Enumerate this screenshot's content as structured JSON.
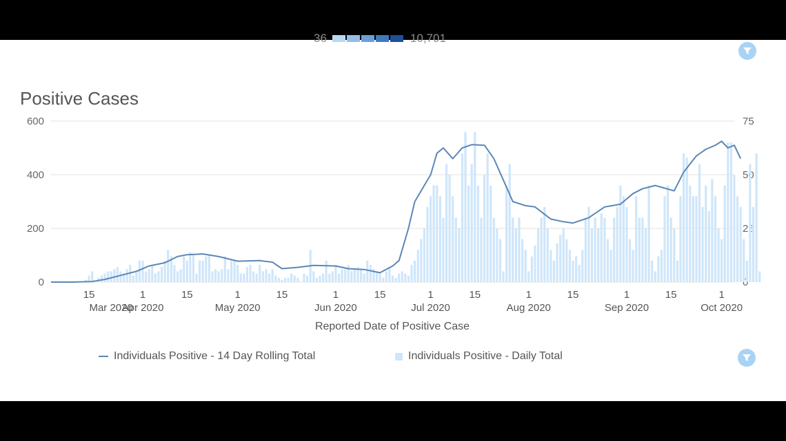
{
  "top_legend": {
    "min_label": "36",
    "max_label": "10,701",
    "swatches": [
      "#b9d7f0",
      "#93bee6",
      "#6a9fd6",
      "#3f79bd",
      "#1f4f96"
    ]
  },
  "colors": {
    "line": "#5b87b5",
    "bar": "#cfe6fa",
    "grid": "#e3e3e3",
    "filter_button": "#a9d3f5"
  },
  "icons": {
    "filter": "filter-icon"
  },
  "chart_data": {
    "type": "bar+line",
    "title": "Positive Cases",
    "xlabel": "Reported Date of Positive Case",
    "ylabel_left": "",
    "ylabel_right": "",
    "x_range": [
      "2020-03-03",
      "2020-10-05"
    ],
    "ylim_left": [
      0,
      600
    ],
    "ylim_right": [
      0,
      75
    ],
    "yticks_left": [
      "0",
      "200",
      "400",
      "600"
    ],
    "yticks_right": [
      "0",
      "25",
      "50",
      "75"
    ],
    "xticks": [
      {
        "date": "2020-03-15",
        "top": "15",
        "bottom": ""
      },
      {
        "date": "2020-03-22",
        "top": "",
        "bottom": "Mar 2020"
      },
      {
        "date": "2020-04-01",
        "top": "1",
        "bottom": "Apr 2020"
      },
      {
        "date": "2020-04-15",
        "top": "15",
        "bottom": ""
      },
      {
        "date": "2020-05-01",
        "top": "1",
        "bottom": "May 2020"
      },
      {
        "date": "2020-05-15",
        "top": "15",
        "bottom": ""
      },
      {
        "date": "2020-06-01",
        "top": "1",
        "bottom": "Jun 2020"
      },
      {
        "date": "2020-06-15",
        "top": "15",
        "bottom": ""
      },
      {
        "date": "2020-07-01",
        "top": "1",
        "bottom": "Jul 2020"
      },
      {
        "date": "2020-07-15",
        "top": "15",
        "bottom": ""
      },
      {
        "date": "2020-08-01",
        "top": "1",
        "bottom": "Aug 2020"
      },
      {
        "date": "2020-08-15",
        "top": "15",
        "bottom": ""
      },
      {
        "date": "2020-09-01",
        "top": "1",
        "bottom": "Sep 2020"
      },
      {
        "date": "2020-09-15",
        "top": "15",
        "bottom": ""
      },
      {
        "date": "2020-10-01",
        "top": "1",
        "bottom": "Oct 2020"
      }
    ],
    "grid": true,
    "legend_position": "bottom",
    "series": [
      {
        "name": "Individuals Positive - 14 Day Rolling Total",
        "type": "line",
        "axis": "left",
        "points": [
          [
            "2020-03-03",
            0
          ],
          [
            "2020-03-10",
            0
          ],
          [
            "2020-03-16",
            2
          ],
          [
            "2020-03-20",
            10
          ],
          [
            "2020-03-25",
            25
          ],
          [
            "2020-03-30",
            40
          ],
          [
            "2020-04-03",
            60
          ],
          [
            "2020-04-08",
            72
          ],
          [
            "2020-04-12",
            95
          ],
          [
            "2020-04-15",
            102
          ],
          [
            "2020-04-20",
            105
          ],
          [
            "2020-04-25",
            95
          ],
          [
            "2020-05-01",
            78
          ],
          [
            "2020-05-08",
            80
          ],
          [
            "2020-05-12",
            74
          ],
          [
            "2020-05-15",
            50
          ],
          [
            "2020-05-20",
            55
          ],
          [
            "2020-05-25",
            62
          ],
          [
            "2020-06-01",
            60
          ],
          [
            "2020-06-05",
            50
          ],
          [
            "2020-06-10",
            47
          ],
          [
            "2020-06-15",
            35
          ],
          [
            "2020-06-19",
            60
          ],
          [
            "2020-06-21",
            80
          ],
          [
            "2020-06-24",
            200
          ],
          [
            "2020-06-26",
            300
          ],
          [
            "2020-06-28",
            340
          ],
          [
            "2020-07-01",
            400
          ],
          [
            "2020-07-03",
            480
          ],
          [
            "2020-07-05",
            500
          ],
          [
            "2020-07-08",
            460
          ],
          [
            "2020-07-11",
            500
          ],
          [
            "2020-07-14",
            512
          ],
          [
            "2020-07-18",
            510
          ],
          [
            "2020-07-21",
            460
          ],
          [
            "2020-07-24",
            380
          ],
          [
            "2020-07-27",
            300
          ],
          [
            "2020-07-31",
            285
          ],
          [
            "2020-08-03",
            280
          ],
          [
            "2020-08-08",
            235
          ],
          [
            "2020-08-12",
            225
          ],
          [
            "2020-08-15",
            220
          ],
          [
            "2020-08-20",
            240
          ],
          [
            "2020-08-25",
            280
          ],
          [
            "2020-08-30",
            290
          ],
          [
            "2020-09-03",
            330
          ],
          [
            "2020-09-06",
            348
          ],
          [
            "2020-09-10",
            360
          ],
          [
            "2020-09-13",
            350
          ],
          [
            "2020-09-16",
            340
          ],
          [
            "2020-09-19",
            410
          ],
          [
            "2020-09-23",
            470
          ],
          [
            "2020-09-26",
            495
          ],
          [
            "2020-09-29",
            510
          ],
          [
            "2020-10-01",
            525
          ],
          [
            "2020-10-03",
            500
          ],
          [
            "2020-10-05",
            510
          ],
          [
            "2020-10-07",
            460
          ]
        ]
      },
      {
        "name": "Individuals Positive - Daily Total",
        "type": "bar",
        "axis": "right",
        "start_date": "2020-03-03",
        "values": [
          0,
          0,
          0,
          0,
          0,
          0,
          0,
          0,
          0,
          0,
          0,
          1,
          3,
          5,
          0,
          2,
          3,
          4,
          5,
          5,
          6,
          7,
          5,
          4,
          6,
          8,
          3,
          5,
          10,
          10,
          5,
          6,
          8,
          4,
          5,
          7,
          10,
          15,
          12,
          8,
          5,
          6,
          12,
          10,
          14,
          13,
          4,
          10,
          10,
          12,
          13,
          5,
          6,
          5,
          6,
          12,
          6,
          10,
          10,
          8,
          4,
          4,
          7,
          8,
          5,
          4,
          8,
          5,
          6,
          4,
          6,
          3,
          2,
          1,
          2,
          2,
          4,
          3,
          2,
          0,
          4,
          3,
          15,
          5,
          2,
          3,
          4,
          10,
          4,
          5,
          8,
          4,
          6,
          6,
          8,
          5,
          6,
          7,
          6,
          4,
          10,
          8,
          6,
          5,
          4,
          2,
          5,
          7,
          3,
          2,
          4,
          5,
          4,
          3,
          8,
          10,
          15,
          20,
          25,
          35,
          40,
          45,
          45,
          40,
          30,
          55,
          50,
          40,
          30,
          25,
          60,
          70,
          45,
          55,
          70,
          45,
          30,
          50,
          60,
          45,
          30,
          25,
          20,
          5,
          45,
          55,
          30,
          25,
          30,
          20,
          15,
          5,
          12,
          17,
          25,
          30,
          35,
          25,
          15,
          10,
          18,
          22,
          25,
          20,
          15,
          10,
          12,
          8,
          15,
          30,
          35,
          25,
          30,
          25,
          32,
          30,
          20,
          15,
          30,
          35,
          45,
          40,
          35,
          20,
          15,
          40,
          30,
          30,
          25,
          45,
          10,
          5,
          12,
          15,
          40,
          45,
          30,
          25,
          10,
          40,
          60,
          58,
          45,
          40,
          40,
          55,
          35,
          45,
          33,
          48,
          40,
          25,
          20,
          45,
          65,
          65,
          50,
          40,
          35,
          20,
          10,
          55,
          35,
          60,
          5
        ]
      }
    ]
  }
}
